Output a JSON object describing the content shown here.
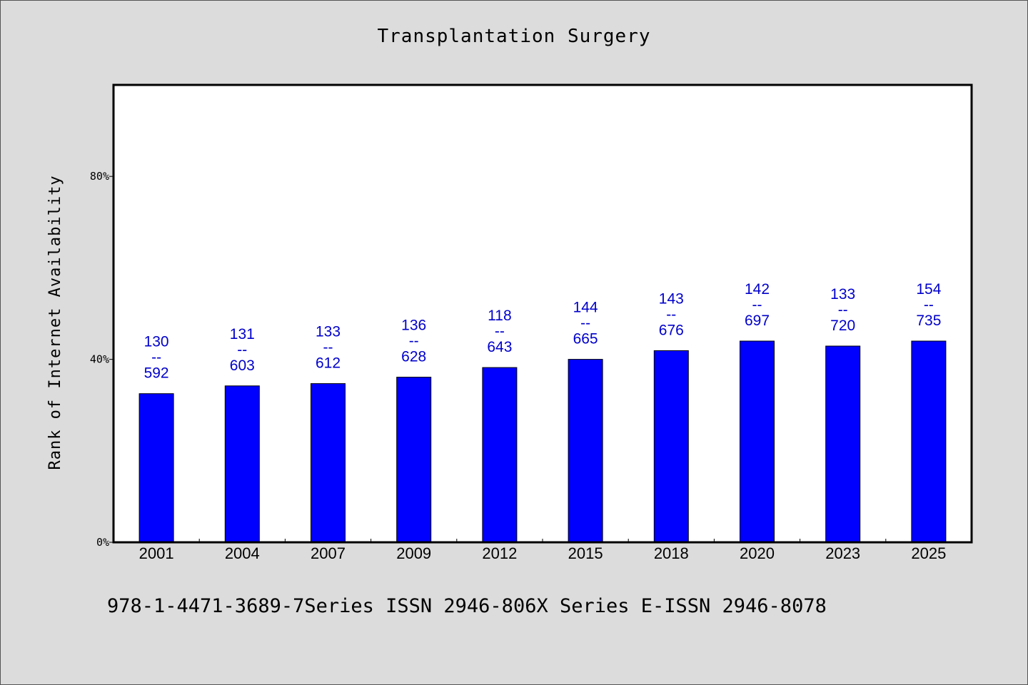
{
  "chart_data": {
    "type": "bar",
    "title": "Transplantation Surgery",
    "ylabel": "Rank of Internet Availability",
    "xlabel": "",
    "categories": [
      "2001",
      "2004",
      "2007",
      "2009",
      "2012",
      "2015",
      "2018",
      "2020",
      "2023",
      "2025"
    ],
    "values": [
      32.5,
      34.2,
      34.7,
      36.1,
      38.2,
      40.0,
      41.9,
      44.0,
      42.9,
      44.0
    ],
    "data_labels": [
      {
        "top": "130",
        "sep": "--",
        "bottom": "592"
      },
      {
        "top": "131",
        "sep": "--",
        "bottom": "603"
      },
      {
        "top": "133",
        "sep": "--",
        "bottom": "612"
      },
      {
        "top": "136",
        "sep": "--",
        "bottom": "628"
      },
      {
        "top": "118",
        "sep": "--",
        "bottom": "643"
      },
      {
        "top": "144",
        "sep": "--",
        "bottom": "665"
      },
      {
        "top": "143",
        "sep": "--",
        "bottom": "676"
      },
      {
        "top": "142",
        "sep": "--",
        "bottom": "697"
      },
      {
        "top": "133",
        "sep": "--",
        "bottom": "720"
      },
      {
        "top": "154",
        "sep": "--",
        "bottom": "735"
      }
    ],
    "ylim": [
      0,
      100
    ],
    "yticks": [
      0,
      40,
      80
    ],
    "ytick_labels": [
      "0%",
      "40%",
      "80%"
    ],
    "grid": false,
    "colors": {
      "bar": "#0000ff",
      "bar_edge": "#000000",
      "data_label": "#0000cc",
      "plot_background": "#ffffff",
      "page_background": "#dcdcdc"
    }
  },
  "footer": {
    "text": "978-1-4471-3689-7Series ISSN 2946-806X Series E-ISSN 2946-8078"
  }
}
